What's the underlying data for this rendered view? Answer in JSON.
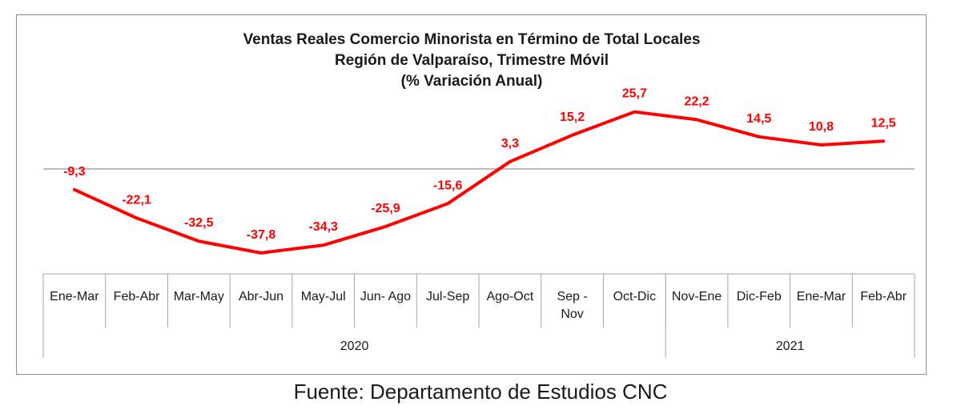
{
  "chart_data": {
    "type": "line",
    "title_lines": [
      "Ventas Reales Comercio Minorista  en Término de Total Locales",
      "Región de Valparaíso, Trimestre Móvil",
      "(% Variación Anual)"
    ],
    "categories": [
      "Ene-Mar",
      "Feb-Abr",
      "Mar-May",
      "Abr-Jun",
      "May-Jul",
      "Jun- Ago",
      "Jul-Sep",
      "Ago-Oct",
      "Sep - Nov",
      "Oct-Dic",
      "Nov-Ene",
      "Dic-Feb",
      "Ene-Mar",
      "Feb-Abr"
    ],
    "year_groups": [
      {
        "label": "2020",
        "count": 10
      },
      {
        "label": "2021",
        "count": 4
      }
    ],
    "series": [
      {
        "values": [
          -9.3,
          -22.1,
          -32.5,
          -37.8,
          -34.3,
          -25.9,
          -15.6,
          3.3,
          15.2,
          25.7,
          22.2,
          14.5,
          10.8,
          12.5
        ],
        "labels": [
          "-9,3",
          "-22,1",
          "-32,5",
          "-37,8",
          "-34,3",
          "-25,9",
          "-15,6",
          "3,3",
          "15,2",
          "25,7",
          "22,2",
          "14,5",
          "10,8",
          "12,5"
        ],
        "color": "#ff0000"
      }
    ],
    "grid": false,
    "legend": "none"
  },
  "source_note": "Fuente: Departamento de Estudios CNC"
}
